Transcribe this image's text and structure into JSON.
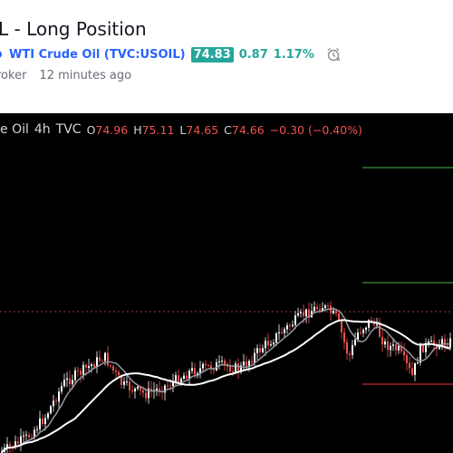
{
  "header": {
    "title": "L - Long Position",
    "symbol": {
      "name": "WTI Crude Oil (TVC:USOIL)",
      "price": "74.83",
      "change": "0.87",
      "change_pct": "1.17%"
    },
    "author": "roker",
    "time_ago": "12 minutes ago"
  },
  "legend": {
    "symbol": "e Oil",
    "interval": "4h",
    "source": "TVC",
    "open_label": "O",
    "open": "74.96",
    "high_label": "H",
    "high": "75.11",
    "low_label": "L",
    "low": "74.65",
    "close_label": "C",
    "close": "74.66",
    "change": "−0.30 (−0.40%)"
  },
  "colors": {
    "up": "#26a69a",
    "down": "#ef5350",
    "candle_up": "#ffffff",
    "candle_down": "#ef5350",
    "ma_fast": "#9598a1",
    "ma_slow": "#ffffff",
    "target_line": "#4caf50",
    "stop_line": "#f23645",
    "entry_line": "#ef5350",
    "link": "#2962ff"
  },
  "icons": [
    "alarm-clock-icon"
  ]
}
